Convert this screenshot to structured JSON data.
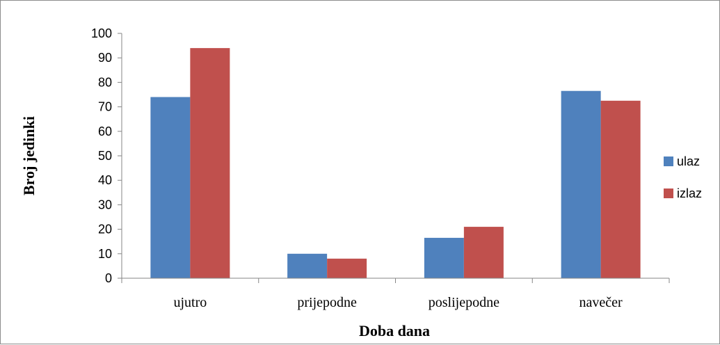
{
  "chart_data": {
    "type": "bar",
    "title": "",
    "xlabel": "Doba dana",
    "ylabel": "Broj jedinki",
    "categories": [
      "ujutro",
      "prijepodne",
      "poslijepodne",
      "navečer"
    ],
    "series": [
      {
        "name": "ulaz",
        "values": [
          74,
          10,
          16.5,
          76.5
        ],
        "color": "#4f81bd"
      },
      {
        "name": "izlaz",
        "values": [
          94,
          8,
          21,
          72.5
        ],
        "color": "#c0504d"
      }
    ],
    "ylim": [
      0,
      100
    ],
    "yticks": [
      "0",
      "10",
      "20",
      "30",
      "40",
      "50",
      "60",
      "70",
      "80",
      "90",
      "100"
    ],
    "grid": false,
    "legend_position": "right"
  }
}
